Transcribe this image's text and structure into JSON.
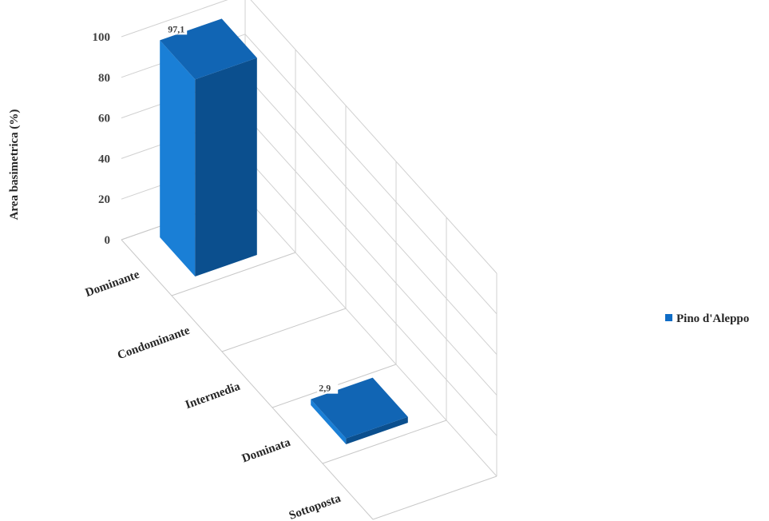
{
  "chart_data": {
    "type": "bar",
    "subtype": "3d-column",
    "categories": [
      "Dominante",
      "Condominante",
      "Intermedia",
      "Dominata",
      "Sottoposta"
    ],
    "series": [
      {
        "name": "Pino d'Aleppo",
        "values": [
          97.1,
          0,
          0,
          2.9,
          0
        ],
        "color": "#0f6cc6"
      }
    ],
    "data_labels": [
      "97,1",
      "",
      "",
      "2,9",
      ""
    ],
    "ylabel": "Area basimetrica (%)",
    "xlabel": "",
    "ylim": [
      0,
      100
    ],
    "yticks": [
      0,
      20,
      40,
      60,
      80,
      100
    ],
    "grid": true,
    "legend_position": "right",
    "colors": {
      "front": "#1a7fd6",
      "side": "#0b4f8e",
      "top": "#1165b4"
    }
  }
}
